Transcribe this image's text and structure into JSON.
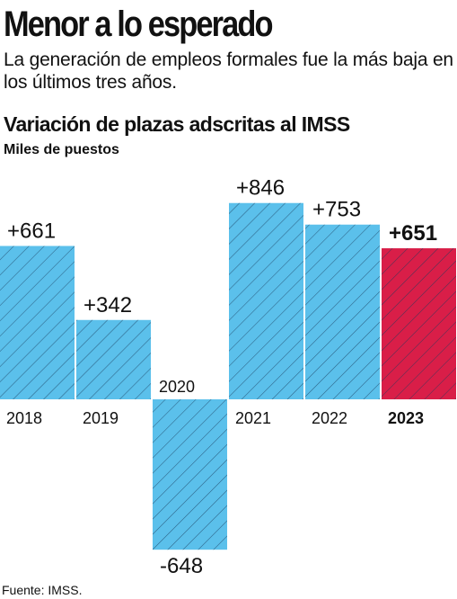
{
  "header": {
    "title": "Menor a lo esperado",
    "subtitle": "La generación de empleos formales fue la más baja en los últimos tres años."
  },
  "footer": {
    "source": "Fuente: IMSS."
  },
  "colors": {
    "bar": "#5bc0eb",
    "highlight": "#d91e48",
    "hatch": "#1a3a5c"
  },
  "chart_data": {
    "type": "bar",
    "title": "Variación de plazas adscritas al IMSS",
    "ylabel": "Miles de puestos",
    "categories": [
      "2018",
      "2019",
      "2020",
      "2021",
      "2022",
      "2023"
    ],
    "values": [
      661,
      342,
      -648,
      846,
      753,
      651
    ],
    "value_labels": [
      "+661",
      "+342",
      "-648",
      "+846",
      "+753",
      "+651"
    ],
    "highlight": "2023",
    "grid": false,
    "legend": "none"
  }
}
